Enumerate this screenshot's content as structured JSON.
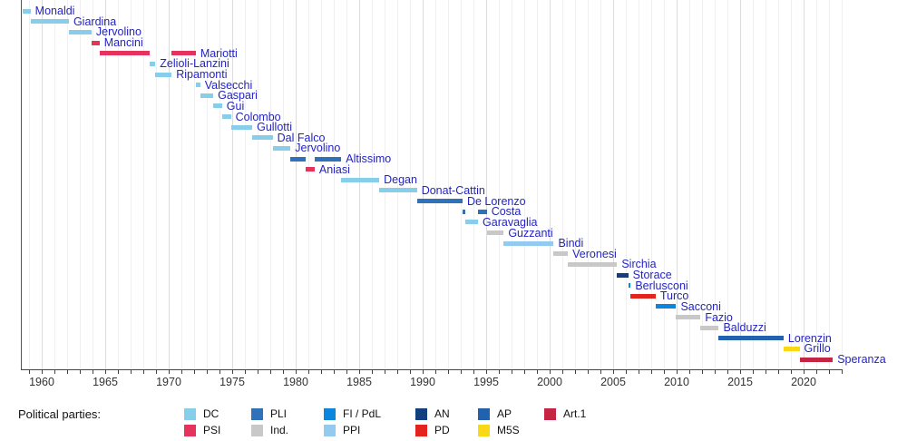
{
  "legend": {
    "title": "Political parties:",
    "items": [
      {
        "key": "DC",
        "label": "DC",
        "col": 0,
        "row": 0
      },
      {
        "key": "PSI",
        "label": "PSI",
        "col": 0,
        "row": 1
      },
      {
        "key": "PLI",
        "label": "PLI",
        "col": 1,
        "row": 0
      },
      {
        "key": "Ind.",
        "label": "Ind.",
        "col": 1,
        "row": 1
      },
      {
        "key": "FI/PdL",
        "label": "FI / PdL",
        "col": 2,
        "row": 0
      },
      {
        "key": "PPI",
        "label": "PPI",
        "col": 2,
        "row": 1
      },
      {
        "key": "AN",
        "label": "AN",
        "col": 3,
        "row": 0
      },
      {
        "key": "PD",
        "label": "PD",
        "col": 3,
        "row": 1
      },
      {
        "key": "AP",
        "label": "AP",
        "col": 4,
        "row": 0
      },
      {
        "key": "M5S",
        "label": "M5S",
        "col": 4,
        "row": 1
      },
      {
        "key": "Art.1",
        "label": "Art.1",
        "col": 5,
        "row": 0
      }
    ]
  },
  "chart_data": {
    "type": "timeline",
    "title": "",
    "grid": "on",
    "legend_position": "bottom",
    "label_color": "#2424C4",
    "x_axis": {
      "min": 1958.35,
      "max": 2023.1,
      "minor_tick_interval": 1,
      "tick_labels": [
        "1960",
        "1965",
        "1970",
        "1975",
        "1980",
        "1985",
        "1990",
        "1995",
        "2000",
        "2005",
        "2010",
        "2015",
        "2020"
      ],
      "tick_label_years": [
        1960,
        1965,
        1970,
        1975,
        1980,
        1985,
        1990,
        1995,
        2000,
        2005,
        2010,
        2015,
        2020
      ]
    },
    "parties": {
      "DC": "#87CEEB",
      "PSI": "#E5335E",
      "PLI": "#2F72B9",
      "Ind.": "#C8C8C8",
      "FI/PdL": "#0B85DD",
      "PPI": "#92CBEF",
      "AN": "#12407F",
      "PD": "#E3241D",
      "AP": "#2161AE",
      "M5S": "#F9D916",
      "Art.1": "#C32543"
    },
    "ministers": [
      {
        "name": "Monaldi",
        "party": "DC",
        "terms": [
          [
            1958.5,
            1959.12
          ]
        ]
      },
      {
        "name": "Giardina",
        "party": "DC",
        "terms": [
          [
            1959.12,
            1962.14
          ]
        ]
      },
      {
        "name": "Jervolino",
        "party": "DC",
        "terms": [
          [
            1962.14,
            1963.92
          ]
        ]
      },
      {
        "name": "Mancini",
        "party": "PSI",
        "terms": [
          [
            1963.92,
            1964.55
          ]
        ]
      },
      {
        "name": "Mariotti",
        "party": "PSI",
        "terms": [
          [
            1964.55,
            1968.48
          ],
          [
            1970.23,
            1972.13
          ]
        ]
      },
      {
        "name": "Zelioli-Lanzini",
        "party": "DC",
        "terms": [
          [
            1968.48,
            1968.95
          ]
        ]
      },
      {
        "name": "Ripamonti",
        "party": "DC",
        "terms": [
          [
            1968.95,
            1970.23
          ]
        ]
      },
      {
        "name": "Valsecchi",
        "party": "DC",
        "terms": [
          [
            1972.13,
            1972.48
          ]
        ]
      },
      {
        "name": "Gaspari",
        "party": "DC",
        "terms": [
          [
            1972.48,
            1973.51
          ]
        ]
      },
      {
        "name": "Gui",
        "party": "DC",
        "terms": [
          [
            1973.51,
            1974.2
          ]
        ]
      },
      {
        "name": "Colombo",
        "party": "DC",
        "terms": [
          [
            1974.2,
            1974.9
          ]
        ]
      },
      {
        "name": "Gullotti",
        "party": "DC",
        "terms": [
          [
            1974.9,
            1976.58
          ]
        ]
      },
      {
        "name": "Dal Falco",
        "party": "DC",
        "terms": [
          [
            1976.58,
            1978.19
          ]
        ]
      },
      {
        "name": "Jervolino",
        "party": "DC",
        "terms": [
          [
            1978.19,
            1979.59
          ]
        ]
      },
      {
        "name": "Altissimo",
        "party": "PLI",
        "terms": [
          [
            1979.59,
            1980.8
          ],
          [
            1981.49,
            1983.59
          ]
        ]
      },
      {
        "name": "Aniasi",
        "party": "PSI",
        "terms": [
          [
            1980.8,
            1981.49
          ]
        ]
      },
      {
        "name": "Degan",
        "party": "DC",
        "terms": [
          [
            1983.59,
            1986.58
          ]
        ]
      },
      {
        "name": "Donat-Cattin",
        "party": "DC",
        "terms": [
          [
            1986.58,
            1989.55
          ]
        ]
      },
      {
        "name": "De Lorenzo",
        "party": "PLI",
        "terms": [
          [
            1989.55,
            1993.14
          ]
        ]
      },
      {
        "name": "Costa",
        "party": "PLI",
        "terms": [
          [
            1993.14,
            1993.33
          ],
          [
            1994.36,
            1995.05
          ]
        ]
      },
      {
        "name": "Garavaglia",
        "party": "DC",
        "terms": [
          [
            1993.33,
            1994.36
          ]
        ]
      },
      {
        "name": "Guzzanti",
        "party": "Ind.",
        "terms": [
          [
            1995.05,
            1996.38
          ]
        ]
      },
      {
        "name": "Bindi",
        "party": "PPI",
        "terms": [
          [
            1996.38,
            2000.32
          ]
        ]
      },
      {
        "name": "Veronesi",
        "party": "Ind.",
        "terms": [
          [
            2000.32,
            2001.44
          ]
        ]
      },
      {
        "name": "Sirchia",
        "party": "Ind.",
        "terms": [
          [
            2001.44,
            2005.31
          ]
        ]
      },
      {
        "name": "Storace",
        "party": "AN",
        "terms": [
          [
            2005.31,
            2006.19
          ]
        ]
      },
      {
        "name": "Berlusconi",
        "party": "FI/PdL",
        "terms": [
          [
            2006.19,
            2006.38
          ]
        ]
      },
      {
        "name": "Turco",
        "party": "PD",
        "terms": [
          [
            2006.38,
            2008.35
          ]
        ]
      },
      {
        "name": "Sacconi",
        "party": "FI/PdL",
        "terms": [
          [
            2008.35,
            2009.96
          ]
        ]
      },
      {
        "name": "Fazio",
        "party": "Ind.",
        "terms": [
          [
            2009.96,
            2011.88
          ]
        ]
      },
      {
        "name": "Balduzzi",
        "party": "Ind.",
        "terms": [
          [
            2011.88,
            2013.32
          ]
        ]
      },
      {
        "name": "Lorenzin",
        "party": "AP",
        "terms": [
          [
            2013.32,
            2018.42
          ]
        ]
      },
      {
        "name": "Grillo",
        "party": "M5S",
        "terms": [
          [
            2018.42,
            2019.68
          ]
        ]
      },
      {
        "name": "Speranza",
        "party": "Art.1",
        "terms": [
          [
            2019.68,
            2022.3
          ]
        ]
      }
    ]
  }
}
